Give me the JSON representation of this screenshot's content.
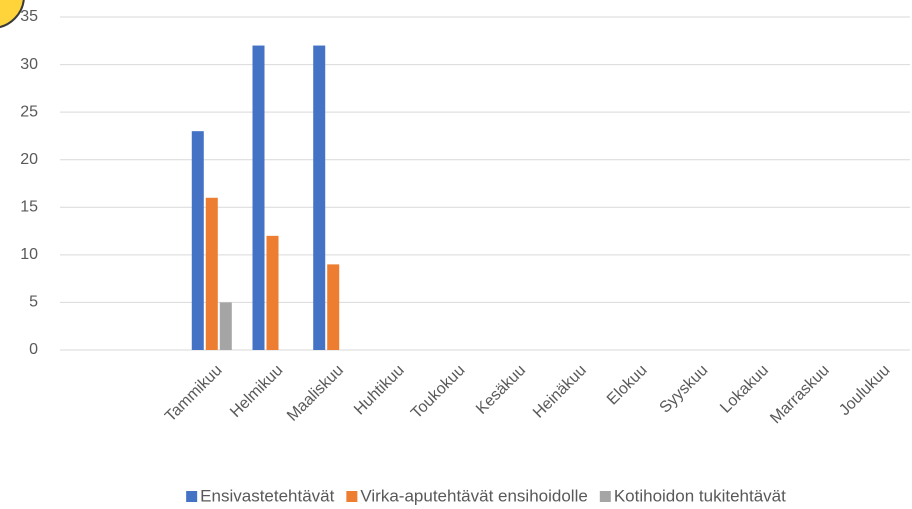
{
  "chart_data": {
    "type": "bar",
    "categories": [
      null,
      null,
      "Tammikuu",
      "Helmikuu",
      "Maaliskuu",
      "Huhtikuu",
      "Toukokuu",
      "Kesäkuu",
      "Heinäkuu",
      "Elokuu",
      "Syyskuu",
      "Lokakuu",
      "Marraskuu",
      "Joulukuu"
    ],
    "series": [
      {
        "name": "Ensivastetehtävät",
        "color": "#4472c4",
        "values": [
          null,
          null,
          23,
          32,
          32,
          null,
          null,
          null,
          null,
          null,
          null,
          null,
          null,
          null
        ]
      },
      {
        "name": "Virka-aputehtävät ensihoidolle",
        "color": "#ed7d31",
        "values": [
          null,
          null,
          16,
          12,
          9,
          null,
          null,
          null,
          null,
          null,
          null,
          null,
          null,
          null
        ]
      },
      {
        "name": "Kotihoidon tukitehtävät",
        "color": "#a5a5a5",
        "values": [
          null,
          null,
          5,
          0,
          0,
          null,
          null,
          null,
          null,
          null,
          null,
          null,
          null,
          null
        ]
      }
    ],
    "ylim": [
      0,
      35
    ],
    "yticks": [
      0,
      5,
      10,
      15,
      20,
      25,
      30,
      35
    ],
    "grid": true,
    "legend": "bottom"
  }
}
